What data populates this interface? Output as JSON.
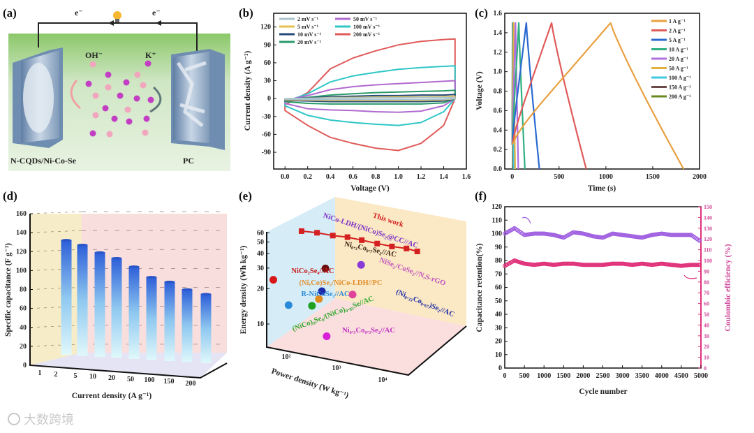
{
  "panel_labels": {
    "a": "(a)",
    "b": "(b)",
    "c": "(c)",
    "d": "(d)",
    "e": "(e)",
    "f": "(f)"
  },
  "schematic": {
    "electron_left": "e⁻",
    "electron_right": "e⁻",
    "anion": "OH⁻",
    "cation": "K⁺",
    "positive_electrode": "N-CQDs/Ni-Co-Se",
    "negative_electrode": "PC",
    "colors": {
      "background_top": "#8cc86a",
      "background_bottom": "#e4f2dc",
      "anion_ion": "#f2a6bd",
      "cation_ion": "#c23fc4",
      "electrode": "#7f9ab8"
    }
  },
  "watermark": "大数跨境",
  "chart_data": [
    {
      "id": "b",
      "type": "line",
      "title": "",
      "xlabel": "Voltage (V)",
      "ylabel": "Current density (A g⁻¹)",
      "xlim": [
        -0.1,
        1.6
      ],
      "ylim": [
        -118,
        143
      ],
      "xticks": [
        0,
        0.2,
        0.4,
        0.6,
        0.8,
        1.0,
        1.2,
        1.4,
        1.6
      ],
      "xtick_labels": [
        "0.0",
        "0.2",
        "0.4",
        "0.6",
        "0.8",
        "1.0",
        "1.2",
        "1.4",
        "1.6"
      ],
      "yticks": [
        -90,
        -60,
        -30,
        0,
        30,
        60,
        90,
        120
      ],
      "ytick_labels": [
        "-90",
        "-60",
        "-30",
        "0",
        "30",
        "60",
        "90",
        "120"
      ],
      "legend": "top-left",
      "voltage": [
        0,
        0.2,
        0.4,
        0.6,
        0.8,
        1.0,
        1.2,
        1.4,
        1.5
      ],
      "series": [
        {
          "name": "2 mV s⁻¹",
          "color": "#a9c4cc",
          "anodic": [
            0,
            0.5,
            1,
            1,
            1.5,
            1.5,
            2,
            2,
            2
          ],
          "cathodic": [
            -1,
            -1.5,
            -1.5,
            -1.5,
            -1.5,
            -1.5,
            -1.5,
            -1,
            0
          ]
        },
        {
          "name": "5 mV s⁻¹",
          "color": "#e6c04e",
          "anodic": [
            -0.5,
            0.5,
            1.5,
            2,
            2.5,
            3,
            3,
            3.5,
            4
          ],
          "cathodic": [
            -2,
            -2.5,
            -3,
            -3,
            -3,
            -3,
            -3,
            -2,
            0
          ]
        },
        {
          "name": "10 mV s⁻¹",
          "color": "#24497a",
          "anodic": [
            -1,
            1,
            3,
            4,
            5,
            5,
            6,
            6,
            7
          ],
          "cathodic": [
            -3,
            -4,
            -5,
            -5,
            -5,
            -5,
            -5,
            -4,
            0
          ]
        },
        {
          "name": "20 mV s⁻¹",
          "color": "#2a9a6a",
          "anodic": [
            -2,
            2,
            6,
            8,
            10,
            11,
            12,
            13,
            14
          ],
          "cathodic": [
            -5,
            -8,
            -9,
            -9,
            -9,
            -9,
            -9,
            -7,
            0
          ]
        },
        {
          "name": "50 mV s⁻¹",
          "color": "#b06ad0",
          "anodic": [
            -3,
            5,
            15,
            20,
            23,
            25,
            27,
            29,
            30
          ],
          "cathodic": [
            -8,
            -17,
            -19,
            -20,
            -22,
            -23,
            -21,
            -12,
            0
          ]
        },
        {
          "name": "100 mV s⁻¹",
          "color": "#2fc6c6",
          "anodic": [
            -5,
            8,
            28,
            38,
            44,
            49,
            52,
            54,
            55
          ],
          "cathodic": [
            -12,
            -28,
            -36,
            -40,
            -43,
            -45,
            -40,
            -22,
            0
          ]
        },
        {
          "name": "200 mV s⁻¹",
          "color": "#e05a5a",
          "anodic": [
            -10,
            10,
            50,
            68,
            80,
            90,
            96,
            99,
            100
          ],
          "cathodic": [
            -20,
            -45,
            -65,
            -75,
            -83,
            -87,
            -75,
            -45,
            0
          ]
        }
      ]
    },
    {
      "id": "c",
      "type": "line",
      "title": "",
      "xlabel": "Time (s)",
      "ylabel": "Voltage (V)",
      "xlim": [
        -80,
        2000
      ],
      "ylim": [
        0,
        1.6
      ],
      "xticks": [
        0,
        500,
        1000,
        1500,
        2000
      ],
      "xtick_labels": [
        "0",
        "500",
        "1000",
        "1500",
        "2000"
      ],
      "yticks": [
        0,
        0.2,
        0.4,
        0.6,
        0.8,
        1.0,
        1.2,
        1.4,
        1.6
      ],
      "ytick_labels": [
        "0.0",
        "0.2",
        "0.4",
        "0.6",
        "0.8",
        "1.0",
        "1.2",
        "1.4",
        "1.6"
      ],
      "legend": "top-right",
      "max_voltage": 1.5,
      "series": [
        {
          "name": "1 A g⁻¹",
          "color": "#e8a040",
          "charge_end_s": 1050,
          "discharge_end_s": 1830
        },
        {
          "name": "2 A g⁻¹",
          "color": "#e05a5a",
          "charge_end_s": 420,
          "discharge_end_s": 790
        },
        {
          "name": "5 A g⁻¹",
          "color": "#2a6ad0",
          "charge_end_s": 150,
          "discharge_end_s": 290
        },
        {
          "name": "10 A g⁻¹",
          "color": "#30b080",
          "charge_end_s": 70,
          "discharge_end_s": 135
        },
        {
          "name": "20 A g⁻¹",
          "color": "#b070e0",
          "charge_end_s": 35,
          "discharge_end_s": 65
        },
        {
          "name": "50 A g⁻¹",
          "color": "#e0b040",
          "charge_end_s": 15,
          "discharge_end_s": 30
        },
        {
          "name": "100 A g⁻¹",
          "color": "#40c8e0",
          "charge_end_s": 8,
          "discharge_end_s": 15
        },
        {
          "name": "150 A g⁻¹",
          "color": "#6a4a4a",
          "charge_end_s": 5,
          "discharge_end_s": 10
        },
        {
          "name": "200 A g⁻¹",
          "color": "#6a8a20",
          "charge_end_s": 3,
          "discharge_end_s": 6
        }
      ]
    },
    {
      "id": "d",
      "type": "bar",
      "title": "",
      "xlabel": "Current density (A g⁻¹)",
      "ylabel": "Specific capacitance (F g⁻¹)",
      "ylim": [
        0,
        160
      ],
      "yticks": [
        0,
        20,
        40,
        60,
        80,
        100,
        120,
        140,
        160
      ],
      "ytick_labels": [
        "0",
        "20",
        "40",
        "60",
        "80",
        "100",
        "120",
        "140",
        "160"
      ],
      "categories": [
        "1",
        "2",
        "5",
        "10",
        "20",
        "50",
        "100",
        "150",
        "200"
      ],
      "values": [
        132,
        127,
        119,
        113,
        104,
        93,
        88,
        80,
        75
      ],
      "colors": {
        "bar_top": "#2d5fd8",
        "bar_bottom": "#d8f6fa"
      }
    },
    {
      "id": "e",
      "type": "scatter",
      "title": "",
      "xlabel": "Power density (W kg⁻¹)",
      "ylabel": "Energy density (Wh kg⁻¹)",
      "xscale": "log",
      "yscale": "log",
      "xtick_labels": [
        "10²",
        "10³",
        "10⁴"
      ],
      "yticks": [
        10,
        20,
        30,
        40,
        50,
        60
      ],
      "ytick_labels": [
        "10",
        "20",
        "30",
        "40",
        "50",
        "60"
      ],
      "this_work": {
        "name": "This work",
        "color": "#d42020",
        "power": [
          66,
          110,
          185,
          300,
          480,
          800,
          1300,
          2100,
          3000
        ],
        "energy": [
          67,
          62,
          56,
          52,
          47,
          42,
          38,
          35,
          32
        ]
      },
      "comparisons": [
        {
          "name": "NiCo-LDH/(NiCo)Se₂@CC//AC",
          "color": "#8a3ad8",
          "label_color": "#7a30c8",
          "power": 470,
          "energy": 29
        },
        {
          "name": "Ni₀.₃Co₀.₇Se₂//AC",
          "color": "#6a1010",
          "label_color": "#3a2010",
          "power": 145,
          "energy": 30
        },
        {
          "name": "NiCo₂Se₄//AC",
          "color": "#d81818",
          "label_color": "#c81818",
          "power": 26,
          "energy": 28
        },
        {
          "name": "NiSe₂/CoSe₂//N,S-rGO",
          "color": "#e0449a",
          "label_color": "#c050c0",
          "power": 355,
          "energy": 16.6
        },
        {
          "name": "(Ni₀.₃₃Co₀.₆₇)Se₂//AC",
          "color": "#1a2aa8",
          "label_color": "#1a2aa8",
          "power": 129,
          "energy": 19.4
        },
        {
          "name": "(Ni,Co)Se₂/NiCo-LDH//PC",
          "color": "#e08a20",
          "label_color": "#e09030",
          "power": 117,
          "energy": 16.8
        },
        {
          "name": "R-NiCoSe₂//AC",
          "color": "#2a8ad8",
          "label_color": "#2a8ad8",
          "power": 43,
          "energy": 16.3
        },
        {
          "name": "(NiCo)₉Se₈/(NiCo)₀.₈₅Se//AC",
          "color": "#20a020",
          "label_color": "#30a830",
          "power": 93,
          "energy": 15
        },
        {
          "name": "Ni₀.₅Co₀.₅Se₂//AC",
          "color": "#d820d8",
          "label_color": "#c030c0",
          "power": 151,
          "energy": 7.9
        }
      ]
    },
    {
      "id": "f",
      "type": "scatter",
      "title": "",
      "xlabel": "Cycle number",
      "ylabel": "Capacitance retention(%)",
      "y2label": "Coulombic efficiency (%)",
      "xlim": [
        0,
        5000
      ],
      "ylim": [
        0,
        120
      ],
      "y2lim": [
        0,
        150
      ],
      "xticks": [
        0,
        500,
        1000,
        1500,
        2000,
        2500,
        3000,
        3500,
        4000,
        4500,
        5000
      ],
      "xtick_labels": [
        "0",
        "500",
        "1000",
        "1500",
        "2000",
        "2500",
        "3000",
        "3500",
        "4000",
        "4500",
        "5000"
      ],
      "yticks": [
        0,
        10,
        20,
        30,
        40,
        50,
        60,
        70,
        80,
        90,
        100,
        110,
        120
      ],
      "ytick_labels": [
        "0",
        "10",
        "20",
        "30",
        "40",
        "50",
        "60",
        "70",
        "80",
        "90",
        "100",
        "110",
        "120"
      ],
      "y2ticks": [
        0,
        10,
        20,
        30,
        40,
        50,
        60,
        70,
        80,
        90,
        100,
        110,
        120,
        130,
        140,
        150
      ],
      "y2tick_labels": [
        "0",
        "10",
        "20",
        "30",
        "40",
        "50",
        "60",
        "70",
        "80",
        "90",
        "100",
        "110",
        "120",
        "130",
        "140",
        "150"
      ],
      "cycles": [
        0,
        250,
        500,
        750,
        1000,
        1250,
        1500,
        1750,
        2000,
        2250,
        2500,
        2750,
        3000,
        3250,
        3500,
        3750,
        4000,
        4250,
        4500,
        4750,
        5000
      ],
      "series": [
        {
          "name": "Capacitance retention",
          "axis": "left",
          "color": "#a060e0",
          "values": [
            100,
            104,
            99,
            100,
            100,
            99,
            97,
            101,
            100,
            98,
            97,
            100,
            99,
            98,
            97,
            99,
            100,
            99,
            99,
            99,
            94
          ]
        },
        {
          "name": "Coulombic efficiency",
          "axis": "right",
          "color": "#e0307a",
          "values": [
            95,
            100,
            97,
            96,
            97,
            96,
            97,
            97,
            96,
            96,
            96,
            97,
            97,
            96,
            97,
            96,
            97,
            96,
            95,
            96,
            96
          ]
        }
      ]
    }
  ]
}
